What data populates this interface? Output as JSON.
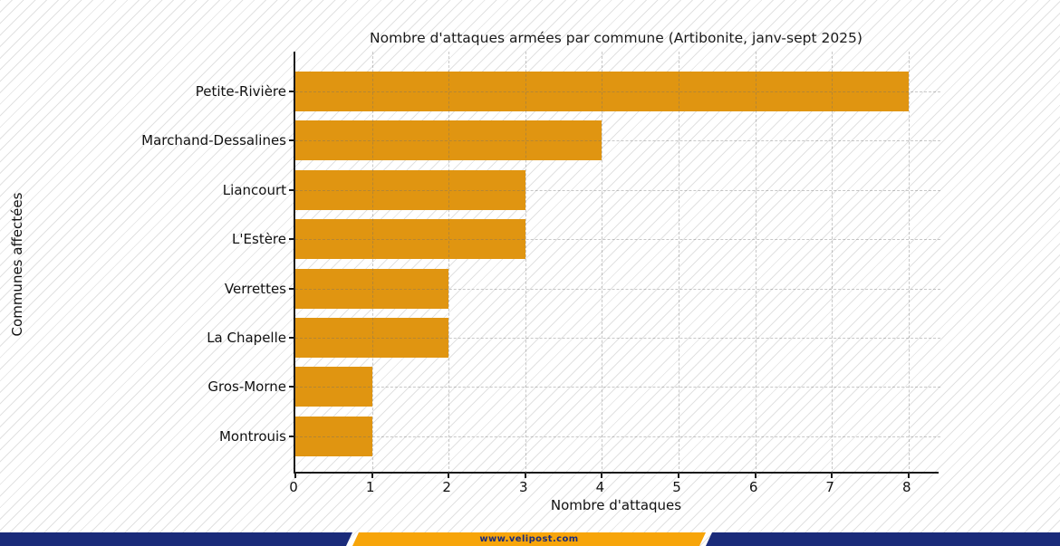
{
  "chart_data": {
    "type": "bar",
    "orientation": "horizontal",
    "title": "Nombre d'attaques armées par commune (Artibonite, janv-sept 2025)",
    "categories": [
      "Petite-Rivière",
      "Marchand-Dessalines",
      "Liancourt",
      "L'Estère",
      "Verrettes",
      "La Chapelle",
      "Gros-Morne",
      "Montrouis"
    ],
    "values": [
      8,
      4,
      3,
      3,
      2,
      2,
      1,
      1
    ],
    "xlabel": "Nombre d'attaques",
    "ylabel": "Communes affectées",
    "xticks": [
      "0",
      "1",
      "2",
      "3",
      "4",
      "5",
      "6",
      "7",
      "8"
    ],
    "xlim": [
      0,
      8.42
    ],
    "grid": true,
    "legend": false,
    "bar_color": "#E09511",
    "axis_color": "#1a1a1a",
    "background_style": "white with light-gray diagonal hatching"
  },
  "footer": {
    "url": "www.velipost.com",
    "navy_color": "#1A2B7A",
    "orange_color": "#F7A50A",
    "text_color": "#1B2B7A"
  }
}
